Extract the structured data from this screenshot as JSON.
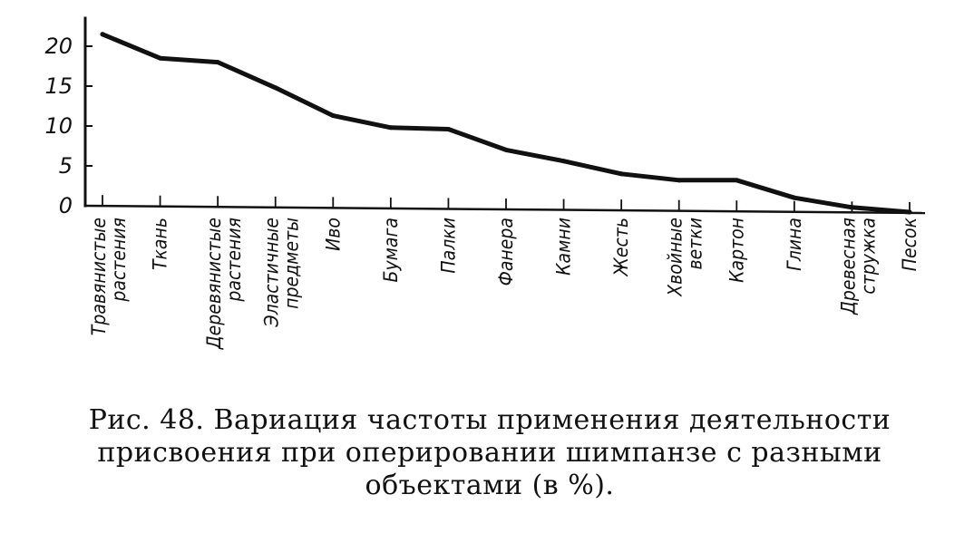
{
  "chart_data": {
    "type": "line",
    "categories": [
      [
        "Травянистые",
        "растения"
      ],
      [
        "Ткань"
      ],
      [
        "Деревянистые",
        "растения"
      ],
      [
        "Эластичные",
        "предметы"
      ],
      [
        "Иво"
      ],
      [
        "Бумага"
      ],
      [
        "Палки"
      ],
      [
        "Фанера"
      ],
      [
        "Камни"
      ],
      [
        "Жесть"
      ],
      [
        "Хвойные",
        "ветки"
      ],
      [
        "Картон"
      ],
      [
        "Глина"
      ],
      [
        "Древесная",
        "стружка"
      ],
      [
        "Песок"
      ]
    ],
    "values": [
      21.5,
      18.5,
      18.0,
      14.8,
      11.3,
      9.8,
      9.6,
      7.0,
      5.6,
      4.0,
      3.2,
      3.2,
      1.0,
      -0.2,
      -0.8
    ],
    "yticks": [
      "20",
      "15",
      "10",
      "5",
      "0"
    ],
    "ylim": [
      0,
      23
    ],
    "series_color": "#111111",
    "grid": false,
    "legend": "none"
  },
  "caption": {
    "line1": "Рис. 48. Вариация частоты применения деятельности",
    "line2": "присвоения при оперировании шимпанзе с разными",
    "line3": "объектами (в %)."
  }
}
